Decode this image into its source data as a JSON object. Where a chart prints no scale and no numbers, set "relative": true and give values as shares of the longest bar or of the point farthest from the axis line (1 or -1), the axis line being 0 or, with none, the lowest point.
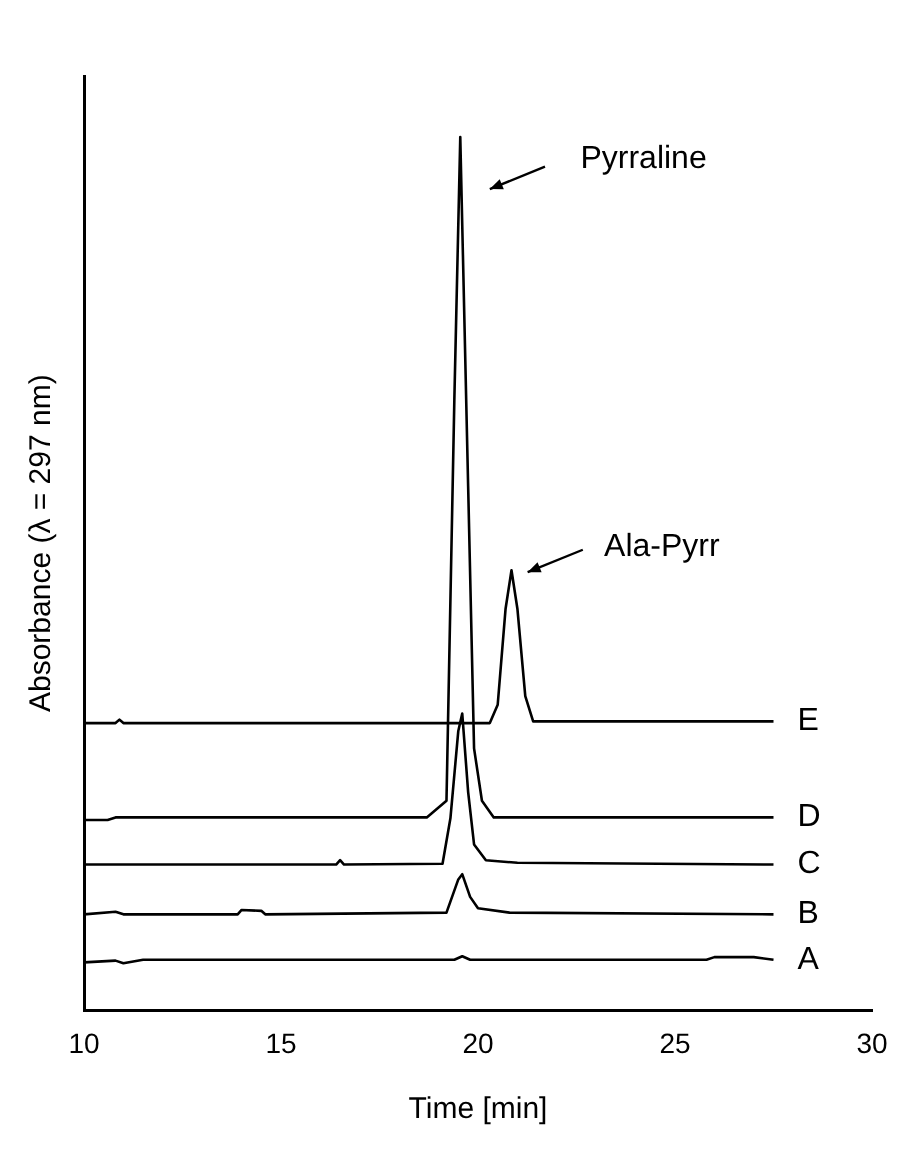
{
  "chart_data": {
    "type": "line",
    "relative": true,
    "xlabel": "Time [min]",
    "ylabel": "Absorbance (λ = 297 nm)",
    "xlim": [
      10,
      30
    ],
    "xticks": [
      10,
      15,
      20,
      25,
      30
    ],
    "grid": false,
    "legend": false,
    "marker": "none",
    "line_style": "solid",
    "annotations": [
      "Pyrraline",
      "Ala-Pyrr"
    ],
    "series": [
      {
        "name": "E",
        "color": "#000000",
        "x": [
          10,
          10.8,
          10.9,
          11,
          20.3,
          20.5,
          20.7,
          20.85,
          21.0,
          21.2,
          21.4,
          27.5
        ],
        "values": [
          0.329,
          0.329,
          0.333,
          0.329,
          0.329,
          0.35,
          0.46,
          0.504,
          0.46,
          0.36,
          0.331,
          0.331
        ]
      },
      {
        "name": "D",
        "color": "#000000",
        "x": [
          10,
          10.6,
          10.8,
          18.7,
          19.2,
          19.4,
          19.55,
          19.75,
          19.9,
          20.1,
          20.4,
          27.5
        ],
        "values": [
          0.218,
          0.218,
          0.221,
          0.221,
          0.24,
          0.7,
          1.0,
          0.6,
          0.3,
          0.24,
          0.221,
          0.221
        ]
      },
      {
        "name": "C",
        "color": "#000000",
        "x": [
          10,
          16.4,
          16.5,
          16.6,
          19.1,
          19.3,
          19.5,
          19.6,
          19.75,
          19.9,
          20.2,
          21,
          27.5
        ],
        "values": [
          0.167,
          0.167,
          0.172,
          0.167,
          0.168,
          0.22,
          0.32,
          0.34,
          0.25,
          0.19,
          0.172,
          0.169,
          0.167
        ]
      },
      {
        "name": "B",
        "color": "#000000",
        "x": [
          10,
          10.8,
          11,
          13.9,
          14.0,
          14.5,
          14.6,
          19.2,
          19.5,
          19.6,
          19.8,
          20,
          20.8,
          27.5
        ],
        "values": [
          0.11,
          0.113,
          0.11,
          0.11,
          0.115,
          0.114,
          0.11,
          0.112,
          0.15,
          0.156,
          0.13,
          0.117,
          0.112,
          0.11
        ]
      },
      {
        "name": "A",
        "color": "#000000",
        "x": [
          10,
          10.8,
          11,
          11.5,
          19.4,
          19.6,
          19.8,
          20.8,
          25.8,
          26,
          27,
          27.5
        ],
        "values": [
          0.055,
          0.057,
          0.054,
          0.058,
          0.058,
          0.062,
          0.058,
          0.058,
          0.058,
          0.061,
          0.061,
          0.058
        ]
      }
    ]
  }
}
